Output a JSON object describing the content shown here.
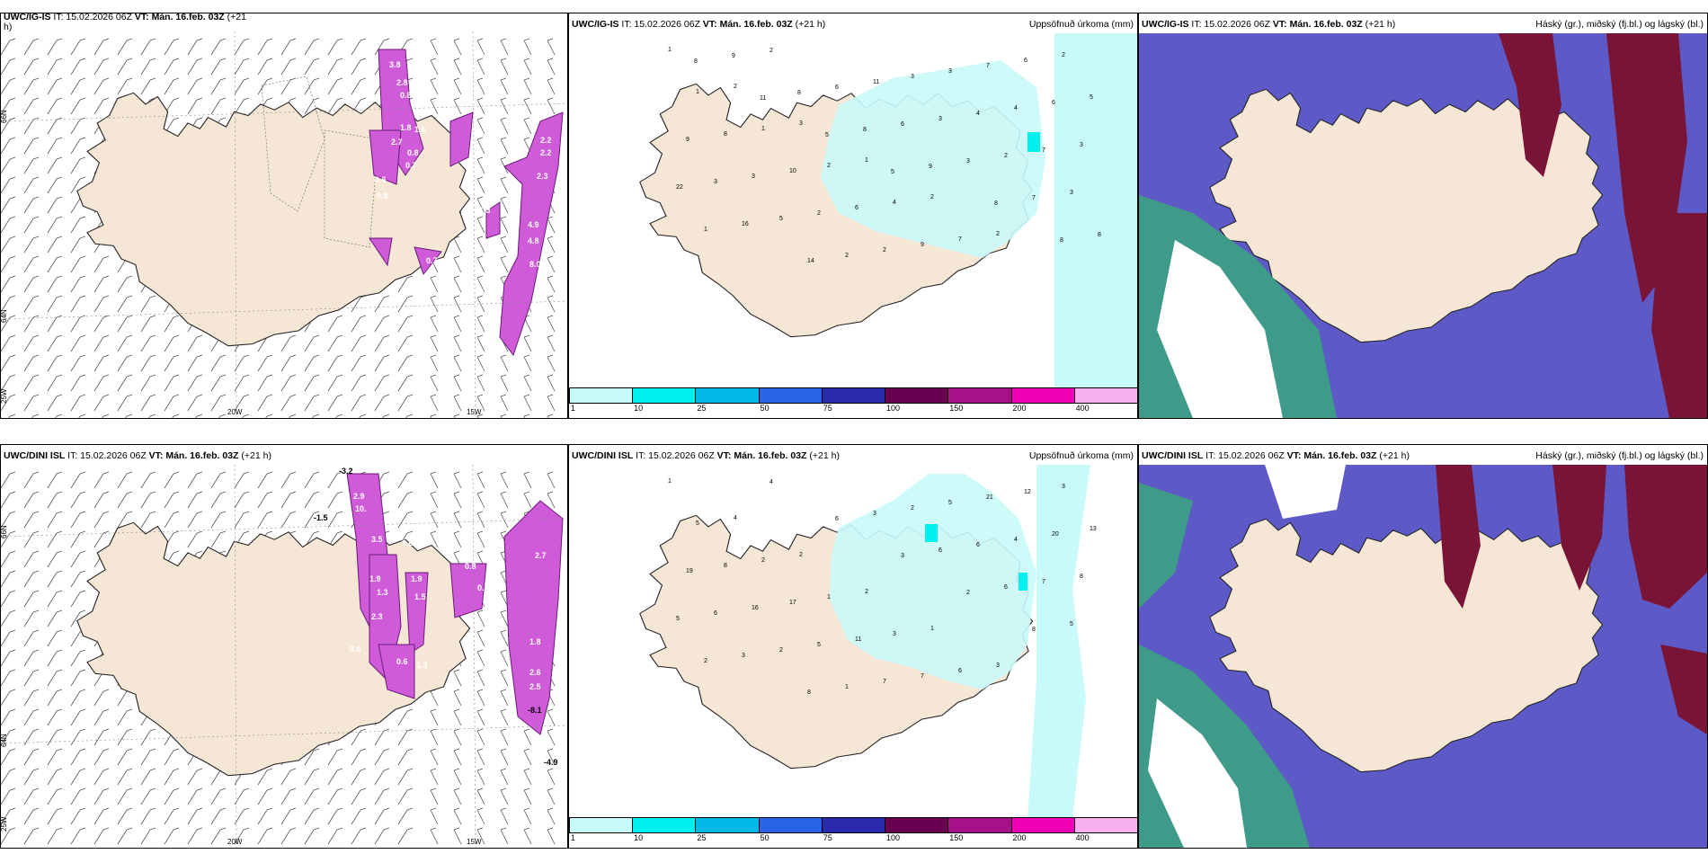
{
  "colors": {
    "land": "#f5e6d6",
    "sea": "#ffffff",
    "precip_light": "#b8f6f6",
    "precip_cyan": "#8ef0f0",
    "purple": "#b043c8",
    "magenta_light": "#e389ef",
    "cloud_high": "#7a1437",
    "cloud_mid": "#5d5ac8",
    "cloud_low": "#39a77e",
    "cloud_low_light": "#b8e8c8"
  },
  "panels": {
    "top_left": {
      "model": "UWC/IG-IS",
      "it": "IT: 15.02.2026 06Z",
      "vt": "VT: Mán. 16.feb. 03Z",
      "lead": "(+21",
      "lead2": "h)",
      "lat_labels": [
        "66N",
        "64N",
        "25W"
      ],
      "lon_labels": [
        "20W",
        "15W"
      ],
      "values": [
        "3.8",
        "2.8",
        "0.8",
        "1.6",
        "1.8",
        "2.7",
        "0.8",
        "0.7",
        "0.6",
        "2.2",
        "2.2",
        "2.3",
        "1.3",
        "0.7",
        "4.9",
        "4.8",
        "8.0",
        "0.8"
      ]
    },
    "top_mid": {
      "model": "UWC/IG-IS",
      "it": "IT: 15.02.2026 06Z",
      "vt": "VT: Mán. 16.feb. 03Z",
      "lead": "(+21 h)",
      "title_right": "Uppsöfnuð úrkoma (mm)",
      "values": [
        "1",
        "2",
        "3",
        "1",
        "2",
        "2",
        "2",
        "1",
        "1",
        "2",
        "4",
        "7",
        "6",
        "5",
        "8",
        "10",
        "6",
        "9",
        "7",
        "6",
        "9",
        "3",
        "2",
        "2",
        "3",
        "4",
        "3",
        "3",
        "5",
        "2",
        "3",
        "4",
        "7",
        "22",
        "16",
        "14",
        "11",
        "3",
        "2",
        "3",
        "1",
        "2",
        "6",
        "6",
        "3",
        "7",
        "8",
        "9",
        "8",
        "8",
        "9",
        "8",
        "8",
        "8",
        "11",
        "5",
        "5"
      ]
    },
    "top_right": {
      "model": "UWC/IG-IS",
      "it": "IT: 15.02.2026 06Z",
      "vt": "VT: Mán. 16.feb. 03Z",
      "lead": "(+21 h)",
      "title_right": "Háský (gr.), miðský (fj.bl.) og lágský (bl.)"
    },
    "bottom_left": {
      "model": "UWC/DINI ISL",
      "it": "IT: 15.02.2026 06Z",
      "vt": "VT: Mán. 16.feb. 03Z",
      "lead": "(+21 h)",
      "lat_labels": [
        "66N",
        "64N",
        "25W"
      ],
      "lon_labels": [
        "20W",
        "15W"
      ],
      "values": [
        "-3.2",
        "2.9",
        "10.",
        "-1.5",
        "3.5",
        "2.6",
        "1.9",
        "1.3",
        "2.3",
        "0.5",
        "1.5",
        "1.9",
        "0.6",
        "1.3",
        "2.7",
        "1.8",
        "2.6",
        "2.5",
        "-8.1",
        "-4.9",
        "0.7",
        "0.8"
      ]
    },
    "bottom_mid": {
      "model": "UWC/DINI ISL",
      "it": "IT: 15.02.2026 06Z",
      "vt": "VT: Mán. 16.feb. 03Z",
      "lead": "(+21 h)",
      "title_right": "Uppsöfnuð úrkoma (mm)",
      "values": [
        "1",
        "4",
        "2",
        "2",
        "1",
        "3",
        "3",
        "5",
        "2",
        "1",
        "3",
        "6",
        "12",
        "13",
        "8",
        "17",
        "11",
        "7",
        "21",
        "20",
        "19",
        "16",
        "5",
        "7",
        "5",
        "4",
        "8",
        "6",
        "2",
        "1",
        "2",
        "6",
        "7",
        "5",
        "3",
        "8",
        "3",
        "6",
        "6",
        "5",
        "2",
        "4",
        "6",
        "3",
        "2",
        "8"
      ]
    },
    "bottom_right": {
      "model": "UWC/DINI ISL",
      "it": "IT: 15.02.2026 06Z",
      "vt": "VT: Mán. 16.feb. 03Z",
      "lead": "(+21 h)",
      "title_right": "Háský (gr.), miðský (fj.bl.) og lágský (bl.)"
    }
  },
  "legend": {
    "colors": [
      "#c9fafa",
      "#00efef",
      "#00b8e6",
      "#2b63e6",
      "#2a2aae",
      "#6a0050",
      "#a8108a",
      "#f000b4",
      "#f6b0f0"
    ],
    "labels": [
      "1",
      "10",
      "25",
      "50",
      "75",
      "100",
      "150",
      "200",
      "400"
    ]
  }
}
